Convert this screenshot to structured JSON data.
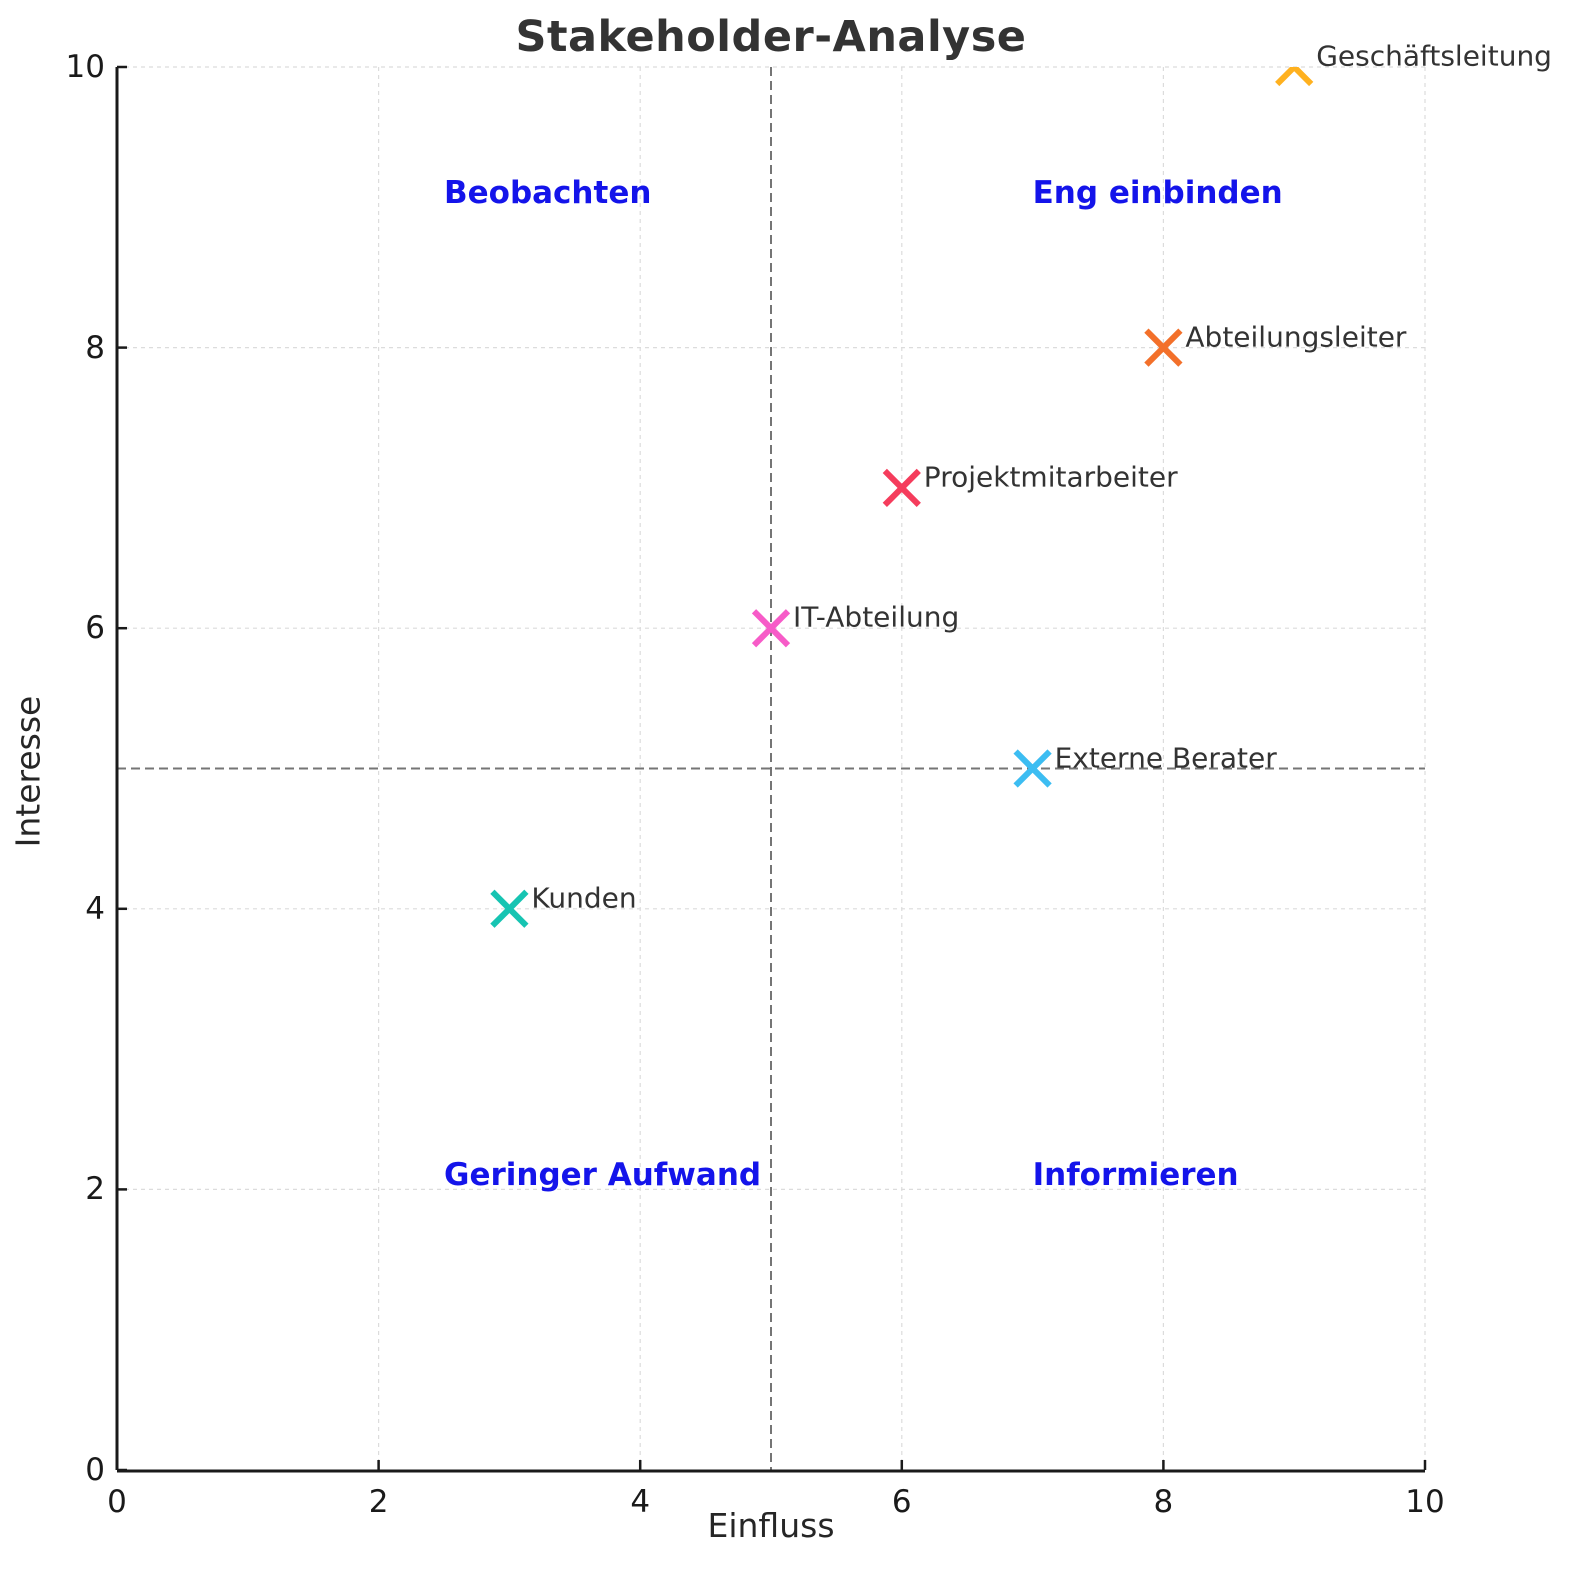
{
  "figure": {
    "background": "#ffffff"
  },
  "chart_data": {
    "type": "scatter",
    "title": "Stakeholder-Analyse",
    "xlabel": "Einfluss",
    "ylabel": "Interesse",
    "xlim": [
      0,
      10
    ],
    "ylim": [
      0,
      10
    ],
    "xticks": [
      0,
      2,
      4,
      6,
      8,
      10
    ],
    "yticks": [
      0,
      2,
      4,
      6,
      8,
      10
    ],
    "grid": {
      "show": true,
      "style": "dashed",
      "color": "#dcdcdc"
    },
    "quadrant_dividers": {
      "x": 5,
      "y": 5,
      "color": "#757575",
      "style": "dashed"
    },
    "marker": {
      "shape": "x",
      "size": 34,
      "stroke_width": 6
    },
    "points": [
      {
        "label": "Geschäftsleitung",
        "x": 9,
        "y": 10,
        "color": "#ffb11f"
      },
      {
        "label": "Abteilungsleiter",
        "x": 8,
        "y": 8,
        "color": "#f3702a"
      },
      {
        "label": "Projektmitarbeiter",
        "x": 6,
        "y": 7,
        "color": "#f53c5c"
      },
      {
        "label": "IT-Abteilung",
        "x": 5,
        "y": 6,
        "color": "#f75bc8"
      },
      {
        "label": "Externe Berater",
        "x": 7,
        "y": 5,
        "color": "#3cbdf2"
      },
      {
        "label": "Kunden",
        "x": 3,
        "y": 4,
        "color": "#16c4b2"
      }
    ],
    "quadrant_labels": [
      {
        "text": "Beobachten",
        "x": 2.5,
        "y": 9.1
      },
      {
        "text": "Eng einbinden",
        "x": 7.0,
        "y": 9.1
      },
      {
        "text": "Geringer Aufwand",
        "x": 2.5,
        "y": 2.1
      },
      {
        "text": "Informieren",
        "x": 7.0,
        "y": 2.1
      }
    ],
    "colors": {
      "title": "#333333",
      "spine": "#1a1a1a",
      "tick_label": "#1a1a1a",
      "point_label": "#333333",
      "quadrant_label": "#1414ea",
      "grid": "#dcdcdc",
      "divider": "#757575"
    }
  }
}
